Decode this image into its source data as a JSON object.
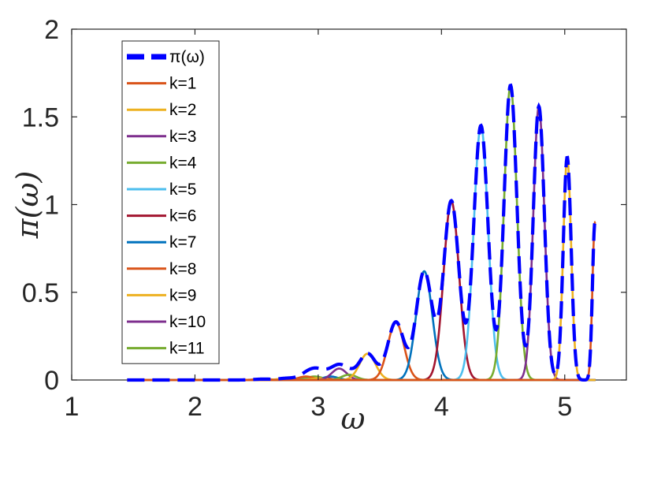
{
  "chart_data": {
    "type": "line",
    "title": "",
    "xlabel": "ω",
    "ylabel": "π(ω)",
    "xlim": [
      1,
      5.5
    ],
    "ylim": [
      0,
      2
    ],
    "xticks": [
      "1",
      "2",
      "3",
      "4",
      "5"
    ],
    "yticks": [
      "0",
      "0.5",
      "1",
      "1.5",
      "2"
    ],
    "grid": false,
    "legend_position": "top-left",
    "total_series": {
      "name": "π(ω)",
      "color": "#0000ff",
      "style": "dashed",
      "x_range": [
        1.45,
        5.25
      ]
    },
    "series": [
      {
        "name": "k=1",
        "color": "#D95319",
        "peak_x": 2.55,
        "peak_y": 0.005,
        "width": 0.07
      },
      {
        "name": "k=2",
        "color": "#EDB120",
        "peak_x": 2.75,
        "peak_y": 0.01,
        "width": 0.07
      },
      {
        "name": "k=3",
        "color": "#7E2F8E",
        "peak_x": 2.95,
        "peak_y": 0.015,
        "width": 0.065
      },
      {
        "name": "k=4",
        "color": "#77AC30",
        "peak_x": 2.97,
        "peak_y": 0.02,
        "width": 0.065
      },
      {
        "name": "k=5",
        "color": "#4DBEEE",
        "peak_x": 3.0,
        "peak_y": 0.01,
        "width": 0.06
      },
      {
        "name": "k=6",
        "color": "#A2142F",
        "peak_x": 3.05,
        "peak_y": 0.01,
        "width": 0.06
      },
      {
        "name": "k=7",
        "color": "#0072BD",
        "peak_x": 3.1,
        "peak_y": 0.02,
        "width": 0.06
      },
      {
        "name": "k=8",
        "color": "#D95319",
        "peak_x": 2.9,
        "peak_y": 0.02,
        "width": 0.06
      },
      {
        "name": "k=9",
        "color": "#EDB120",
        "peak_x": 3.0,
        "peak_y": 0.01,
        "width": 0.06
      },
      {
        "name": "k=10",
        "color": "#7E2F8E",
        "peak_x": 3.17,
        "peak_y": 0.065,
        "width": 0.06
      },
      {
        "name": "k=11",
        "color": "#77AC30",
        "peak_x": 3.25,
        "peak_y": 0.03,
        "width": 0.06
      },
      {
        "name": "k=1",
        "color": "#EDB120",
        "peak_x": 3.4,
        "peak_y": 0.15,
        "width": 0.065,
        "hidden_in_legend": true
      },
      {
        "name": "k=1",
        "color": "#D95319",
        "peak_x": 3.63,
        "peak_y": 0.33,
        "width": 0.065,
        "hidden_in_legend": true
      },
      {
        "name": "k=1",
        "color": "#0072BD",
        "peak_x": 3.86,
        "peak_y": 0.62,
        "width": 0.065,
        "hidden_in_legend": true
      },
      {
        "name": "k=1",
        "color": "#A2142F",
        "peak_x": 4.08,
        "peak_y": 1.02,
        "width": 0.062,
        "hidden_in_legend": true
      },
      {
        "name": "k=1",
        "color": "#4DBEEE",
        "peak_x": 4.32,
        "peak_y": 1.45,
        "width": 0.058,
        "hidden_in_legend": true
      },
      {
        "name": "k=1",
        "color": "#77AC30",
        "peak_x": 4.56,
        "peak_y": 1.68,
        "width": 0.052,
        "hidden_in_legend": true
      },
      {
        "name": "k=1",
        "color": "#7E2F8E",
        "peak_x": 4.79,
        "peak_y": 1.56,
        "width": 0.045,
        "hidden_in_legend": true
      },
      {
        "name": "k=1",
        "color": "#EDB120",
        "peak_x": 5.02,
        "peak_y": 1.27,
        "width": 0.032,
        "hidden_in_legend": true
      },
      {
        "name": "k=1",
        "color": "#D95319",
        "peak_x": 5.245,
        "peak_y": 0.9,
        "width": 0.02,
        "edge": true,
        "hidden_in_legend": true
      }
    ]
  }
}
